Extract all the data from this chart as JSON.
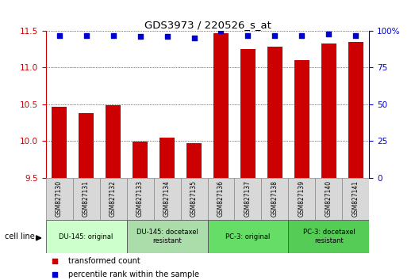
{
  "title": "GDS3973 / 220526_s_at",
  "samples": [
    "GSM827130",
    "GSM827131",
    "GSM827132",
    "GSM827133",
    "GSM827134",
    "GSM827135",
    "GSM827136",
    "GSM827137",
    "GSM827138",
    "GSM827139",
    "GSM827140",
    "GSM827141"
  ],
  "red_values": [
    10.47,
    10.38,
    10.49,
    9.99,
    10.05,
    9.97,
    11.47,
    11.25,
    11.28,
    11.1,
    11.33,
    11.35
  ],
  "blue_values": [
    97,
    97,
    97,
    96,
    96,
    95,
    100,
    97,
    97,
    97,
    98,
    97
  ],
  "ylim": [
    9.5,
    11.5
  ],
  "yticks_left": [
    9.5,
    10.0,
    10.5,
    11.0,
    11.5
  ],
  "yticks_right": [
    0,
    25,
    50,
    75,
    100
  ],
  "left_color": "#cc0000",
  "right_color": "#0000cc",
  "bar_color": "#cc0000",
  "dot_color": "#0000cc",
  "groups": [
    {
      "label": "DU-145: original",
      "start": 0,
      "end": 3,
      "color": "#ccffcc"
    },
    {
      "label": "DU-145: docetaxel\nresistant",
      "start": 3,
      "end": 6,
      "color": "#aaddaa"
    },
    {
      "label": "PC-3: original",
      "start": 6,
      "end": 9,
      "color": "#66dd66"
    },
    {
      "label": "PC-3: docetaxel\nresistant",
      "start": 9,
      "end": 12,
      "color": "#55cc55"
    }
  ],
  "cell_line_label": "cell line",
  "legend_red": "transformed count",
  "legend_blue": "percentile rank within the sample",
  "bg_color": "#ffffff",
  "xtick_bg": "#d8d8d8",
  "xtick_border": "#888888"
}
